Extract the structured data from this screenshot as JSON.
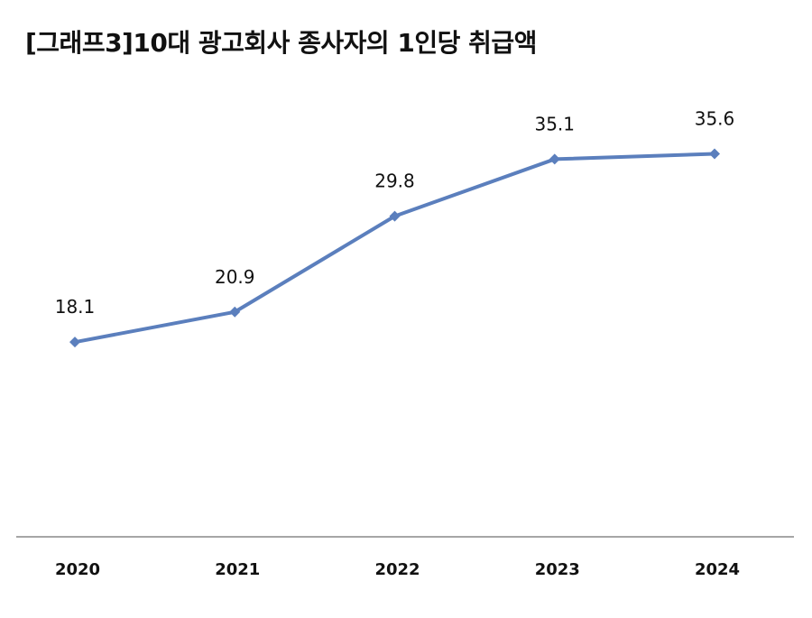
{
  "chart_data": {
    "type": "line",
    "title": "[그래프3]10대 광고회사 종사자의 1인당 취급액",
    "categories": [
      "2020",
      "2021",
      "2022",
      "2023",
      "2024"
    ],
    "series": [
      {
        "values": [
          18.1,
          20.9,
          29.8,
          35.1,
          35.6
        ]
      }
    ],
    "data_labels": [
      "18.1",
      "20.9",
      "29.8",
      "35.1",
      "35.6"
    ],
    "ylim": [
      0,
      40
    ],
    "grid": false,
    "legend": "none",
    "marker": "diamond",
    "colors": {
      "line": "#5b7fbd",
      "axis": "#a6a6a6",
      "text": "#111111"
    }
  }
}
